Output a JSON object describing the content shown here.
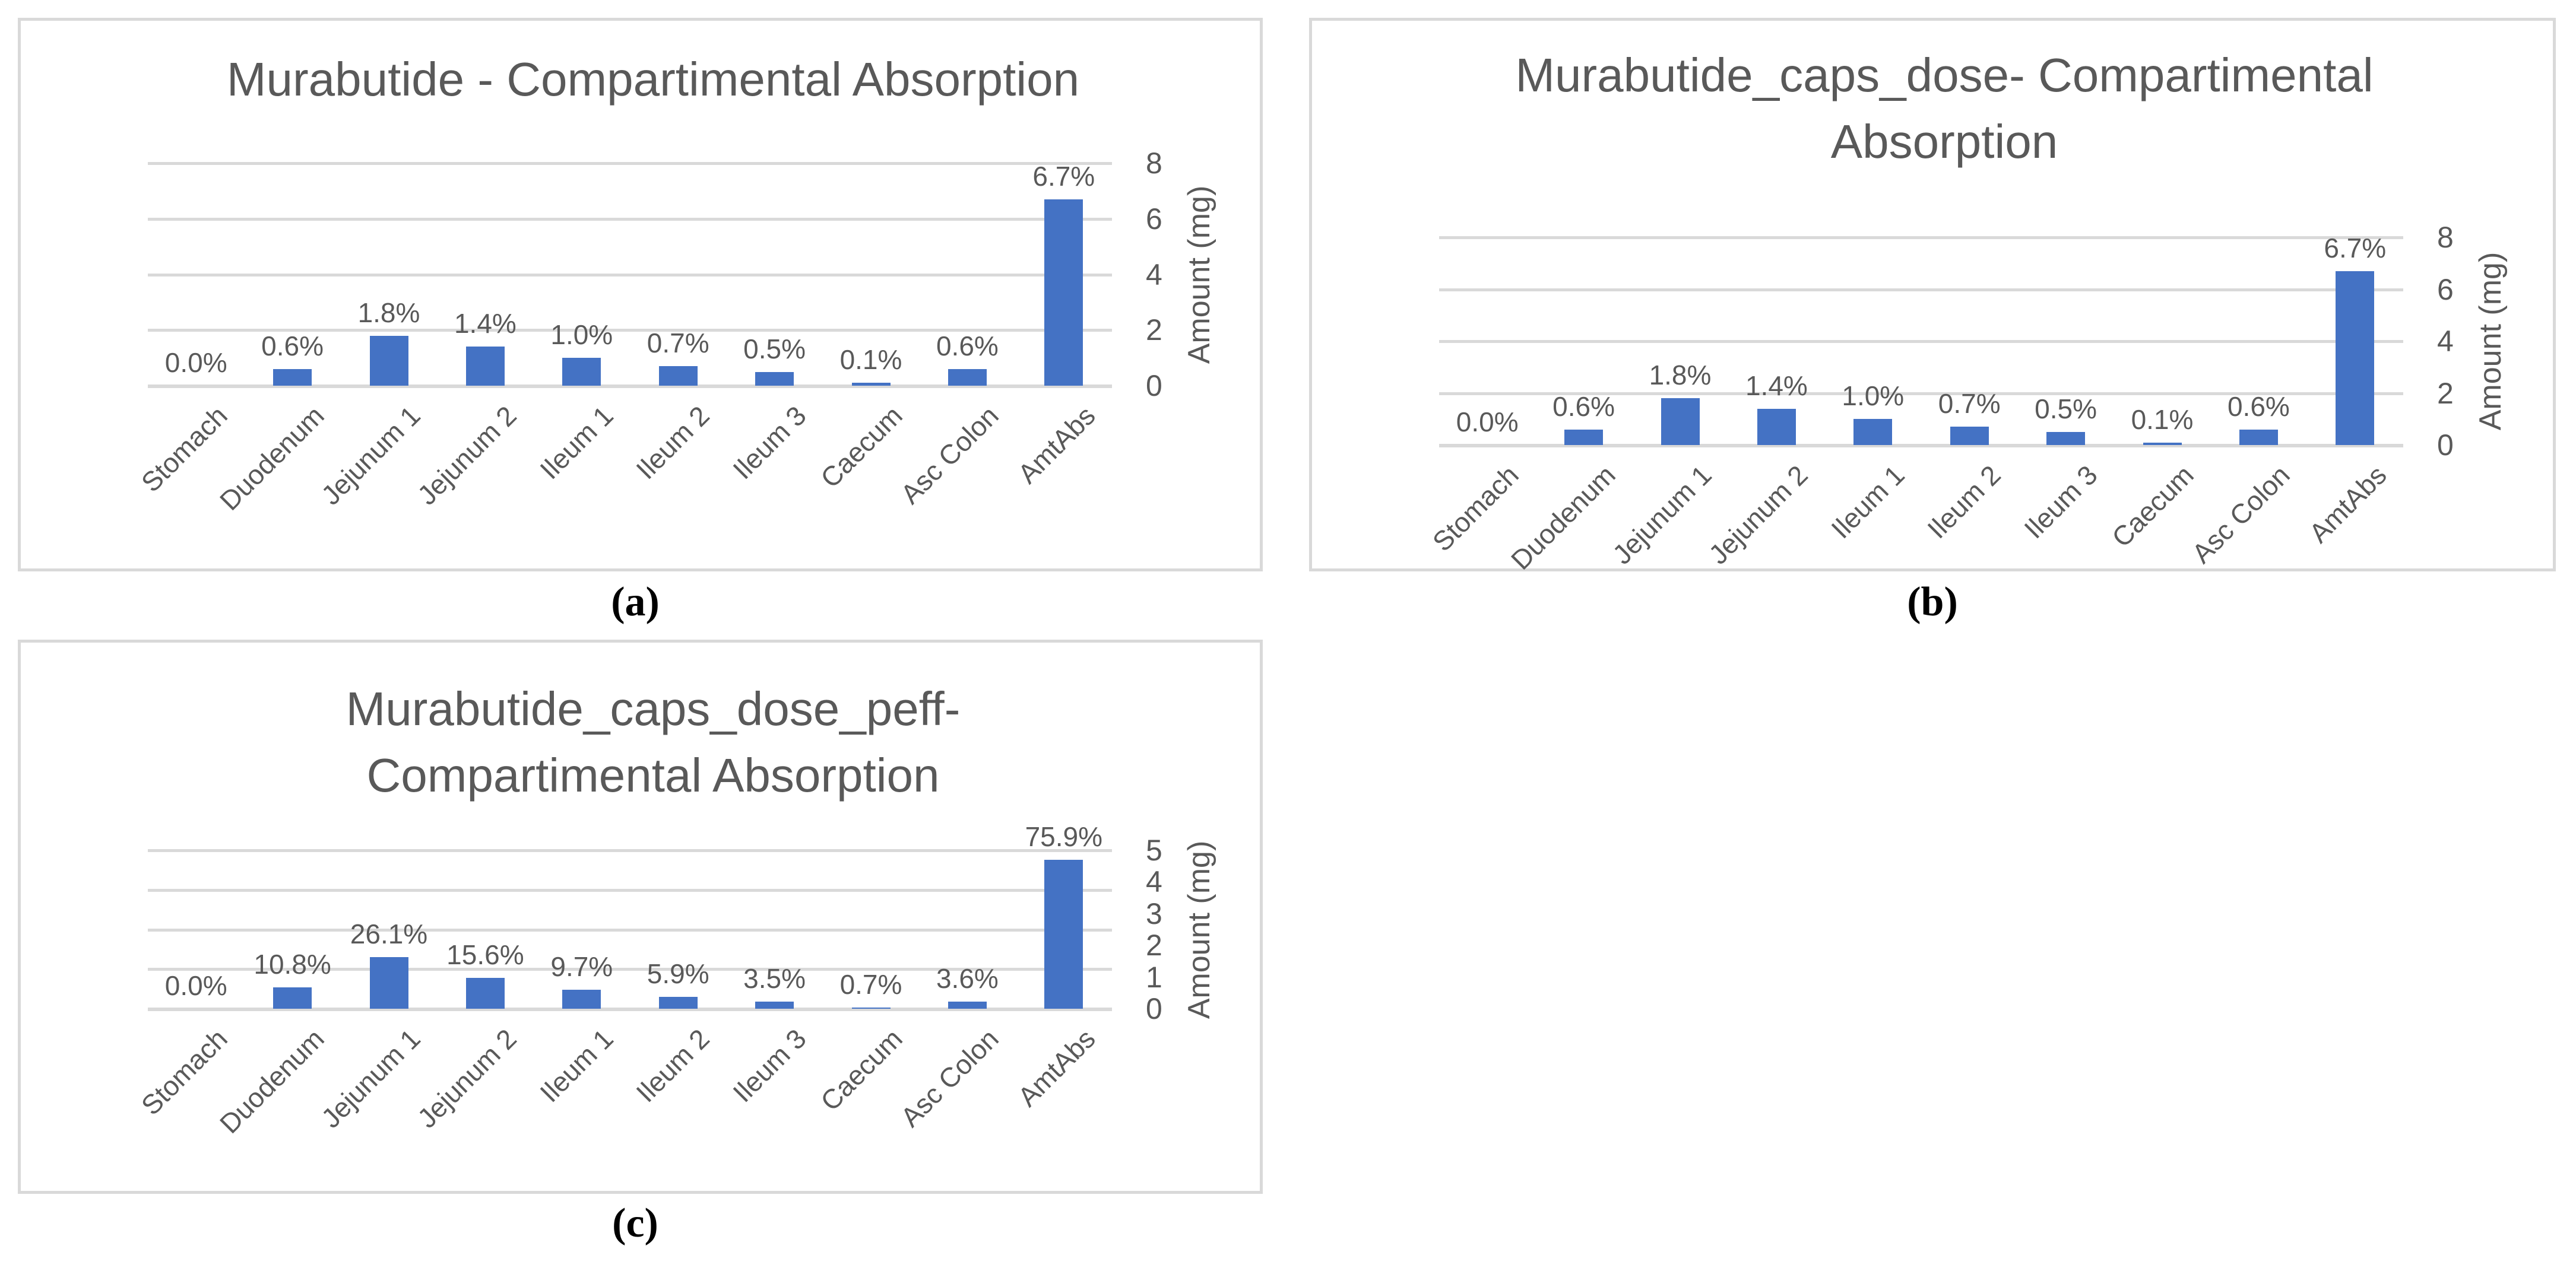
{
  "page": {
    "background": "#ffffff"
  },
  "captions": {
    "a": "(a)",
    "b": "(b)",
    "c": "(c)"
  },
  "colors": {
    "bar": "#4472C4",
    "gridline": "#D9D9D9",
    "panel_border": "#D9D9D9",
    "chart_text": "#595959",
    "caption_text": "#000000"
  },
  "chart_data": [
    {
      "id": "a",
      "type": "bar",
      "title": "Murabutide - Compartimental Absorption",
      "title_lines": [
        "Murabutide - Compartimental Absorption"
      ],
      "categories": [
        "Stomach",
        "Duodenum",
        "Jejunum 1",
        "Jejunum 2",
        "Ileum 1",
        "Ileum 2",
        "Ileum 3",
        "Caecum",
        "Asc Colon",
        "AmtAbs"
      ],
      "values": [
        0,
        0.6,
        1.8,
        1.4,
        1.0,
        0.7,
        0.5,
        0.1,
        0.6,
        6.7
      ],
      "data_labels": [
        "0.0%",
        "0.6%",
        "1.8%",
        "1.4%",
        "1.0%",
        "0.7%",
        "0.5%",
        "0.1%",
        "0.6%",
        "6.7%"
      ],
      "xlabel": "",
      "ylabel": "Amount (mg)",
      "ylim": [
        0,
        8
      ],
      "yticks": [
        "0",
        "2",
        "4",
        "6",
        "8"
      ],
      "grid": true,
      "legend": false
    },
    {
      "id": "b",
      "type": "bar",
      "title": "Murabutide_caps_dose- Compartimental Absorption",
      "title_lines": [
        "Murabutide_caps_dose- Compartimental",
        "Absorption"
      ],
      "categories": [
        "Stomach",
        "Duodenum",
        "Jejunum 1",
        "Jejunum 2",
        "Ileum 1",
        "Ileum 2",
        "Ileum 3",
        "Caecum",
        "Asc Colon",
        "AmtAbs"
      ],
      "values": [
        0,
        0.6,
        1.8,
        1.4,
        1.0,
        0.7,
        0.5,
        0.1,
        0.6,
        6.7
      ],
      "data_labels": [
        "0.0%",
        "0.6%",
        "1.8%",
        "1.4%",
        "1.0%",
        "0.7%",
        "0.5%",
        "0.1%",
        "0.6%",
        "6.7%"
      ],
      "xlabel": "",
      "ylabel": "Amount (mg)",
      "ylim": [
        0,
        8
      ],
      "yticks": [
        "0",
        "2",
        "4",
        "6",
        "8"
      ],
      "grid": true,
      "legend": false
    },
    {
      "id": "c",
      "type": "bar",
      "title": "Murabutide_caps_dose_peff- Compartimental Absorption",
      "title_lines": [
        "Murabutide_caps_dose_peff-",
        "Compartimental Absorption"
      ],
      "categories": [
        "Stomach",
        "Duodenum",
        "Jejunum 1",
        "Jejunum 2",
        "Ileum 1",
        "Ileum 2",
        "Ileum 3",
        "Caecum",
        "Asc Colon",
        "AmtAbs"
      ],
      "values": [
        0,
        0.67,
        1.62,
        0.97,
        0.6,
        0.37,
        0.22,
        0.04,
        0.22,
        4.7
      ],
      "data_labels": [
        "0.0%",
        "10.8%",
        "26.1%",
        "15.6%",
        "9.7%",
        "5.9%",
        "3.5%",
        "0.7%",
        "3.6%",
        "75.9%"
      ],
      "xlabel": "",
      "ylabel": "Amount (mg)",
      "ylim": [
        0,
        5
      ],
      "yticks": [
        "0",
        "1",
        "2",
        "3",
        "4",
        "5"
      ],
      "grid": true,
      "legend": false
    }
  ]
}
